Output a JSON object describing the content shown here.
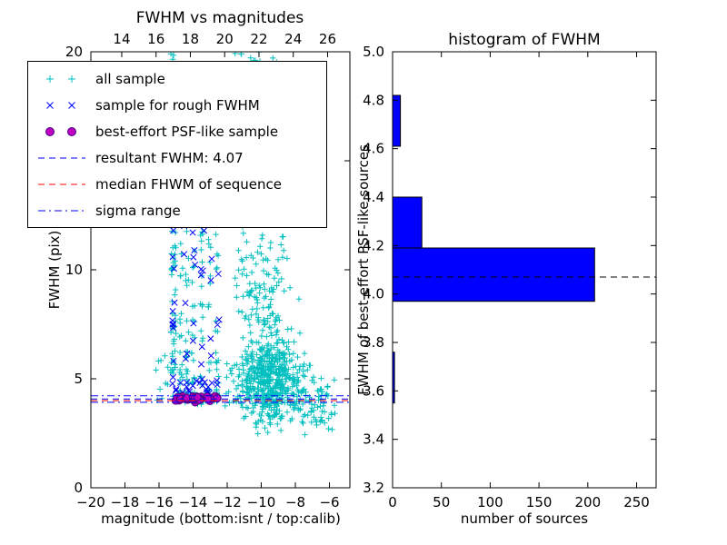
{
  "figure": {
    "background": "#ffffff"
  },
  "legend": {
    "position": "upper left",
    "items": [
      {
        "label": "all sample",
        "marker": "plus",
        "color": "#00bfbf"
      },
      {
        "label": "sample for rough FWHM",
        "marker": "x",
        "color": "#0000ff"
      },
      {
        "label": "best-effort PSF-like sample",
        "marker": "circle",
        "color": "#bf00bf",
        "edge_color": "#4b0082"
      },
      {
        "label": "resultant FWHM: 4.07",
        "line": "dashed",
        "color": "#0000ff"
      },
      {
        "label": "median FHWM of sequence",
        "line": "dashed",
        "color": "#ff0000"
      },
      {
        "label": "sigma range",
        "line": "dashdot",
        "color": "#0000ff"
      }
    ]
  },
  "chart_data": [
    {
      "type": "scatter",
      "title": "FWHM vs magnitudes",
      "xlabel": "magnitude (bottom:isnt / top:calib)",
      "ylabel": "FWHM (pix)",
      "xlim": [
        -20,
        -4.8
      ],
      "ylim": [
        0,
        20
      ],
      "xticks": [
        -20,
        -18,
        -16,
        -14,
        -12,
        -10,
        -8,
        -6
      ],
      "xtick_labels": [
        "−20",
        "−18",
        "−16",
        "−14",
        "−12",
        "−10",
        "−8",
        "−6"
      ],
      "yticks": [
        0,
        5,
        10,
        15,
        20
      ],
      "ytick_labels": [
        "0",
        "5",
        "10",
        "15",
        "20"
      ],
      "top_xlim": [
        12.2,
        27.3
      ],
      "top_xticks": [
        14,
        16,
        18,
        20,
        22,
        24,
        26
      ],
      "top_xtick_labels": [
        "14",
        "16",
        "18",
        "20",
        "22",
        "24",
        "26"
      ],
      "ref_lines": [
        {
          "name": "sigma-range-upper",
          "y": 4.22,
          "style": "dashdot",
          "color": "#0000ff"
        },
        {
          "name": "resultant-fwhm",
          "y": 4.07,
          "style": "dashed",
          "color": "#0000ff"
        },
        {
          "name": "median-fwhm-of-sequence",
          "y": 4.0,
          "style": "dashed",
          "color": "#ff0000"
        },
        {
          "name": "sigma-range-lower",
          "y": 3.92,
          "style": "dashdot",
          "color": "#0000ff"
        }
      ],
      "series": [
        {
          "name": "all sample",
          "marker": "plus",
          "color": "#00bfbf",
          "clusters": [
            {
              "n": 45,
              "x": {
                "u": [
                  -15.32,
                  -15.0
                ]
              },
              "y": {
                "u": [
                  4.0,
                  12.0
                ]
              }
            },
            {
              "n": 25,
              "x": {
                "u": [
                  -15.32,
                  -15.02
                ]
              },
              "y": {
                "u": [
                  12.0,
                  20.0
                ]
              }
            },
            {
              "n": 130,
              "cols": [
                -14.7,
                -14.35,
                -14.0,
                -13.5,
                -13.05,
                -12.6
              ],
              "jitter": 0.09,
              "y": {
                "u": [
                  4.0,
                  12.5
                ],
                "pow": 1.8
              }
            },
            {
              "n": 60,
              "x": {
                "u": [
                  -15.1,
                  -12.4
                ]
              },
              "y": {
                "g": [
                  4.15,
                  0.12
                ]
              }
            },
            {
              "n": 520,
              "x": {
                "g": [
                  -9.5,
                  1.05
                ]
              },
              "y": {
                "g": [
                  4.8,
                  0.95
                ]
              },
              "yclip": [
                2.4,
                8.0
              ],
              "xclip": [
                -12.2,
                -5.9
              ]
            },
            {
              "n": 150,
              "x": {
                "g": [
                  -9.8,
                  0.75
                ]
              },
              "y": {
                "g": [
                  8.5,
                  2.4
                ]
              },
              "yclip": [
                5.0,
                19.0
              ]
            },
            {
              "n": 25,
              "x": {
                "u": [
                  -12.9,
                  -9.4
                ]
              },
              "y": {
                "u": [
                  15.5,
                  20.0
                ]
              }
            },
            {
              "n": 12,
              "cols": [
                -10.65
              ],
              "jitter": 0.06,
              "y": {
                "u": [
                  14.0,
                  20.0
                ]
              }
            },
            {
              "n": 10,
              "x": {
                "u": [
                  -11.8,
                  -7.9
                ]
              },
              "y": {
                "u": [
                  19.4,
                  20.0
                ]
              }
            },
            {
              "n": 70,
              "x": {
                "u": [
                  -8.2,
                  -5.6
                ]
              },
              "y": {
                "g": [
                  3.8,
                  0.75
                ]
              },
              "yclip": [
                2.0,
                5.6
              ]
            },
            {
              "n": 10,
              "x": {
                "u": [
                  -16.3,
                  -15.4
                ]
              },
              "y": {
                "u": [
                  3.9,
                  6.5
                ]
              }
            }
          ]
        },
        {
          "name": "sample for rough FWHM",
          "marker": "x",
          "color": "#0000ff",
          "clusters": [
            {
              "n": 18,
              "x": {
                "u": [
                  -15.05,
                  -12.5
                ]
              },
              "y": {
                "u": [
                  4.2,
                  5.0
                ]
              }
            },
            {
              "n": 12,
              "cols": [
                -15.15
              ],
              "jitter": 0.07,
              "y": {
                "u": [
                  4.5,
                  12.0
                ]
              }
            },
            {
              "n": 28,
              "cols": [
                -14.45,
                -13.95,
                -13.45,
                -12.95,
                -12.55
              ],
              "jitter": 0.09,
              "y": {
                "u": [
                  4.6,
                  12.5
                ],
                "pow": 1.4
              }
            }
          ]
        },
        {
          "name": "best-effort PSF-like sample",
          "marker": "circle",
          "color": "#bf00bf",
          "edge_color": "#4b0082",
          "clusters": [
            {
              "n": 48,
              "x": {
                "u": [
                  -15.05,
                  -12.55
                ]
              },
              "y": {
                "g": [
                  4.1,
                  0.06
                ]
              }
            }
          ]
        }
      ],
      "legend_position": "upper left"
    },
    {
      "type": "bar",
      "orientation": "horizontal",
      "title": "histogram of FWHM",
      "xlabel": "number of sources",
      "ylabel": "FWHM of best-effort PSF-like sources",
      "xlim": [
        0,
        270
      ],
      "ylim": [
        3.2,
        5.0
      ],
      "xticks": [
        0,
        50,
        100,
        150,
        200,
        250
      ],
      "xtick_labels": [
        "0",
        "50",
        "100",
        "150",
        "200",
        "250"
      ],
      "yticks": [
        3.2,
        3.4,
        3.6,
        3.8,
        4.0,
        4.2,
        4.4,
        4.6,
        4.8,
        5.0
      ],
      "ytick_labels": [
        "3.2",
        "3.4",
        "3.6",
        "3.8",
        "4.0",
        "4.2",
        "4.4",
        "4.6",
        "4.8",
        "5.0"
      ],
      "bin_edges": [
        3.55,
        3.76,
        3.97,
        4.19,
        4.4,
        4.61,
        4.82
      ],
      "counts": [
        2,
        0,
        207,
        30,
        0,
        8
      ],
      "bar_color": "#0000ff",
      "bar_edge_color": "#000000",
      "ref_line": {
        "y": 4.07,
        "style": "dashed",
        "color": "#000000"
      }
    }
  ]
}
